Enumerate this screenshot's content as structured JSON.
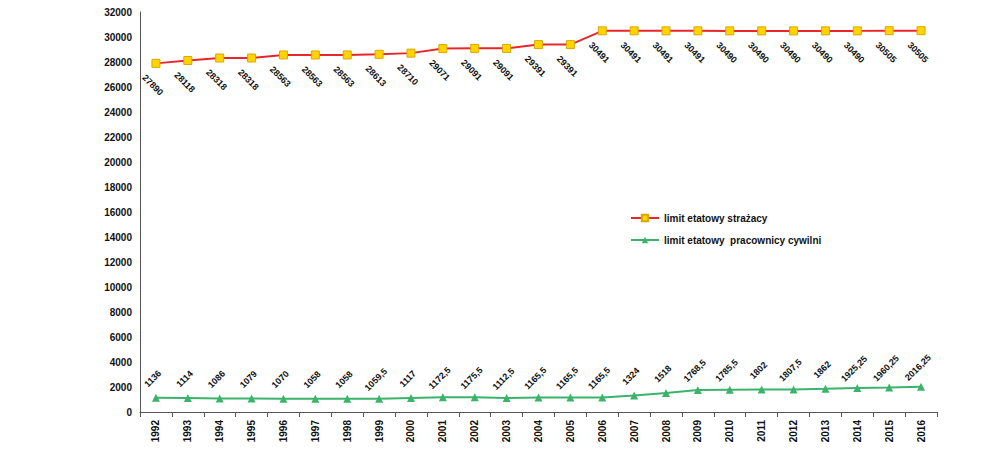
{
  "chart_data": {
    "type": "line",
    "categories": [
      "1992",
      "1993",
      "1994",
      "1995",
      "1996",
      "1997",
      "1998",
      "1999",
      "2000",
      "2001",
      "2002",
      "2003",
      "2004",
      "2005",
      "2006",
      "2007",
      "2008",
      "2009",
      "2010",
      "2011",
      "2012",
      "2013",
      "2014",
      "2015",
      "2016"
    ],
    "series": [
      {
        "name": "limit etatowy strażacy",
        "color": "#e8262b",
        "marker": "square",
        "values": [
          27890,
          28118,
          28318,
          28318,
          28563,
          28563,
          28563,
          28613,
          28710,
          29071,
          29091,
          29091,
          29391,
          29391,
          30491,
          30491,
          30491,
          30491,
          30490,
          30490,
          30490,
          30490,
          30490,
          30505,
          30505
        ]
      },
      {
        "name": "limit etatowy  pracownicy cywilni",
        "color": "#3cb36b",
        "marker": "triangle",
        "values": [
          1136,
          1114,
          1086,
          1079,
          1070,
          1058,
          1058,
          1059.5,
          1117,
          1172.5,
          1175.5,
          1112.5,
          1165.5,
          1165.5,
          1165.5,
          1324,
          1518,
          1768.5,
          1785.5,
          1802,
          1807.5,
          1862,
          1925.25,
          1960.25,
          2016.25
        ],
        "value_labels": [
          "1136",
          "1114",
          "1086",
          "1079",
          "1070",
          "1058",
          "1058",
          "1059,5",
          "1117",
          "1172,5",
          "1175,5",
          "1112,5",
          "1165,5",
          "1165,5",
          "1165,5",
          "1324",
          "1518",
          "1768,5",
          "1785,5",
          "1802",
          "1807,5",
          "1862",
          "1925,25",
          "1960,25",
          "2016,25"
        ]
      }
    ],
    "ylim": [
      0,
      32000
    ],
    "yticks": [
      0,
      2000,
      4000,
      6000,
      8000,
      10000,
      12000,
      14000,
      16000,
      18000,
      20000,
      22000,
      24000,
      26000,
      28000,
      30000,
      32000
    ],
    "grid": false,
    "legend": "right",
    "data_labels": true
  }
}
